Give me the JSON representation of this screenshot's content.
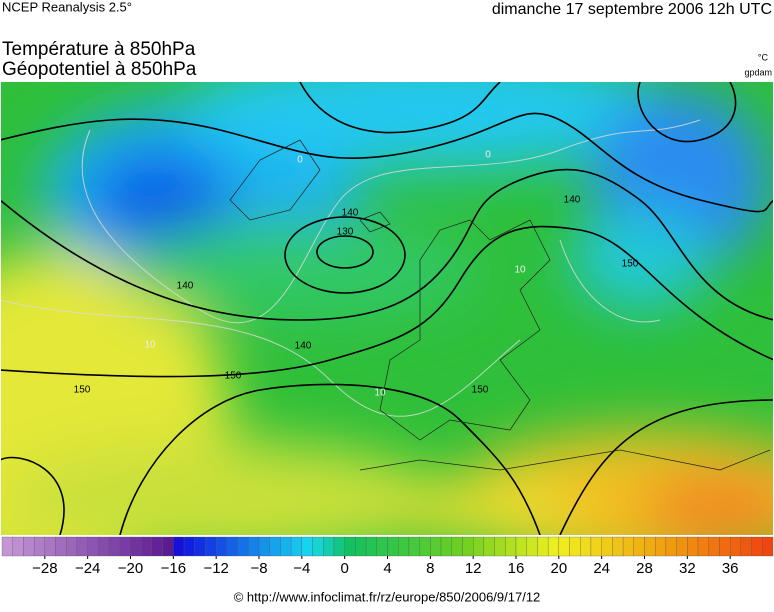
{
  "header": {
    "source": "NCEP Reanalysis 2.5°",
    "date": "dimanche 17 septembre 2006 12h UTC"
  },
  "titles": {
    "line1": "Température à 850hPa",
    "line2": "Géopotentiel à 850hPa"
  },
  "units": {
    "temperature": "°C",
    "geopotential": "gpdam"
  },
  "contour_labels": [
    "140",
    "130",
    "140",
    "150",
    "140",
    "150",
    "150",
    "150",
    "140"
  ],
  "isotherm_labels": [
    "0",
    "10",
    "10",
    "10",
    "0"
  ],
  "colorbar": {
    "range": [
      -32,
      40
    ],
    "ticks": [
      {
        "value": -28,
        "label": "−28"
      },
      {
        "value": -24,
        "label": "−24"
      },
      {
        "value": -20,
        "label": "−20"
      },
      {
        "value": -16,
        "label": "−16"
      },
      {
        "value": -12,
        "label": "−12"
      },
      {
        "value": -8,
        "label": "−8"
      },
      {
        "value": -4,
        "label": "−4"
      },
      0,
      4,
      8,
      12,
      16,
      20,
      24,
      28,
      32,
      36
    ]
  },
  "footer": "© http://www.infoclimat.fr/rz/europe/850/2006/9/17/12"
}
